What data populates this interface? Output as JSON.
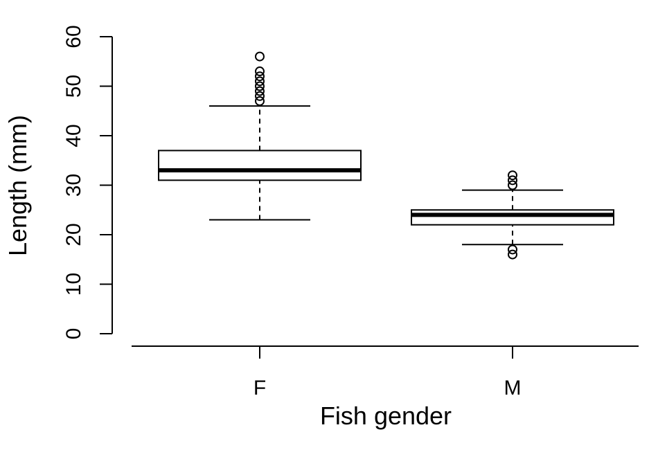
{
  "chart_data": {
    "type": "boxplot",
    "xlabel": "Fish gender",
    "ylabel": "Length (mm)",
    "ylim": [
      0,
      60
    ],
    "yticks": [
      0,
      10,
      20,
      30,
      40,
      50,
      60
    ],
    "categories": [
      "F",
      "M"
    ],
    "boxes": [
      {
        "category": "F",
        "whisker_low": 23,
        "q1": 31,
        "median": 33,
        "q3": 37,
        "whisker_high": 46,
        "outliers": [
          47,
          48,
          49,
          50,
          51,
          52,
          53,
          56
        ]
      },
      {
        "category": "M",
        "whisker_low": 18,
        "q1": 22,
        "median": 24,
        "q3": 25,
        "whisker_high": 29,
        "outliers": [
          16,
          17,
          30,
          31,
          32
        ]
      }
    ],
    "grid": false,
    "colors": {
      "box_fill": "#ffffff",
      "stroke": "#000000"
    }
  }
}
